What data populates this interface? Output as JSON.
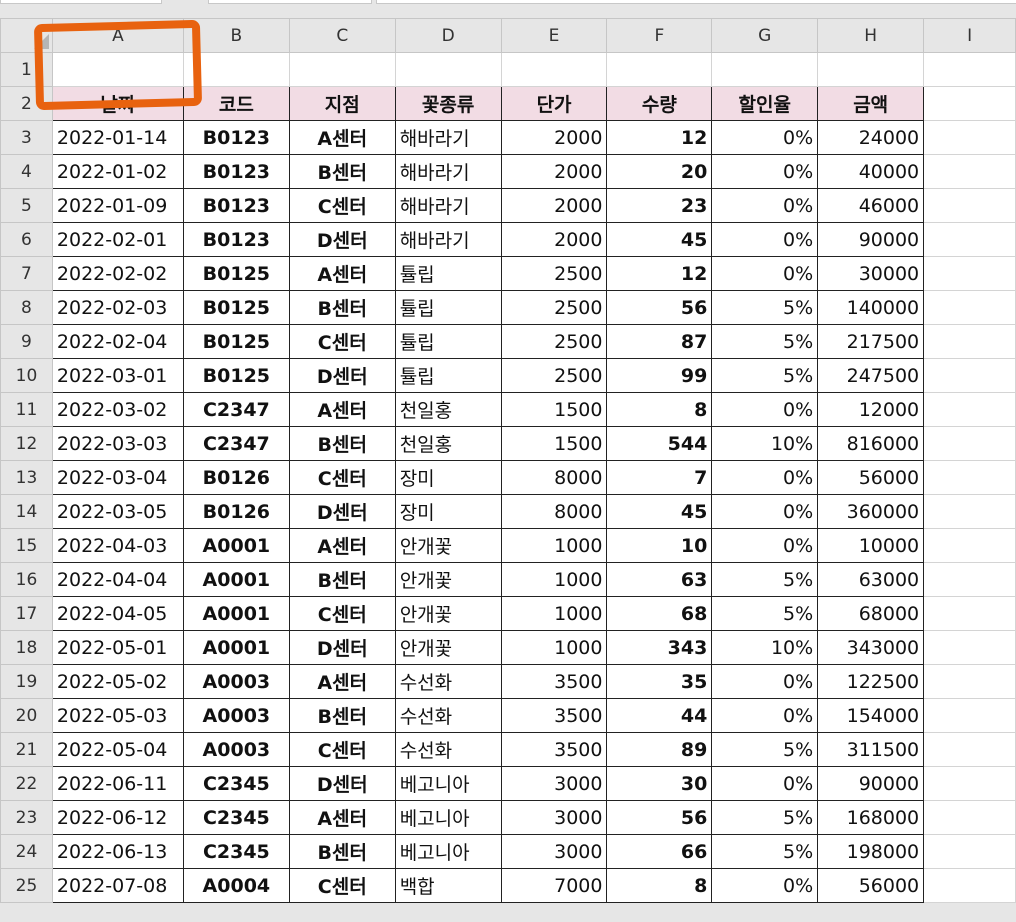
{
  "columns": [
    "A",
    "B",
    "C",
    "D",
    "E",
    "F",
    "G",
    "H",
    "I"
  ],
  "headers": [
    "날짜",
    "코드",
    "지점",
    "꽃종류",
    "단가",
    "수량",
    "할인율",
    "금액"
  ],
  "rows": [
    [
      "2022-01-14",
      "B0123",
      "A센터",
      "해바라기",
      "2000",
      "12",
      "0%",
      "24000"
    ],
    [
      "2022-01-02",
      "B0123",
      "B센터",
      "해바라기",
      "2000",
      "20",
      "0%",
      "40000"
    ],
    [
      "2022-01-09",
      "B0123",
      "C센터",
      "해바라기",
      "2000",
      "23",
      "0%",
      "46000"
    ],
    [
      "2022-02-01",
      "B0123",
      "D센터",
      "해바라기",
      "2000",
      "45",
      "0%",
      "90000"
    ],
    [
      "2022-02-02",
      "B0125",
      "A센터",
      "튤립",
      "2500",
      "12",
      "0%",
      "30000"
    ],
    [
      "2022-02-03",
      "B0125",
      "B센터",
      "튤립",
      "2500",
      "56",
      "5%",
      "140000"
    ],
    [
      "2022-02-04",
      "B0125",
      "C센터",
      "튤립",
      "2500",
      "87",
      "5%",
      "217500"
    ],
    [
      "2022-03-01",
      "B0125",
      "D센터",
      "튤립",
      "2500",
      "99",
      "5%",
      "247500"
    ],
    [
      "2022-03-02",
      "C2347",
      "A센터",
      "천일홍",
      "1500",
      "8",
      "0%",
      "12000"
    ],
    [
      "2022-03-03",
      "C2347",
      "B센터",
      "천일홍",
      "1500",
      "544",
      "10%",
      "816000"
    ],
    [
      "2022-03-04",
      "B0126",
      "C센터",
      "장미",
      "8000",
      "7",
      "0%",
      "56000"
    ],
    [
      "2022-03-05",
      "B0126",
      "D센터",
      "장미",
      "8000",
      "45",
      "0%",
      "360000"
    ],
    [
      "2022-04-03",
      "A0001",
      "A센터",
      "안개꽃",
      "1000",
      "10",
      "0%",
      "10000"
    ],
    [
      "2022-04-04",
      "A0001",
      "B센터",
      "안개꽃",
      "1000",
      "63",
      "5%",
      "63000"
    ],
    [
      "2022-04-05",
      "A0001",
      "C센터",
      "안개꽃",
      "1000",
      "68",
      "5%",
      "68000"
    ],
    [
      "2022-05-01",
      "A0001",
      "D센터",
      "안개꽃",
      "1000",
      "343",
      "10%",
      "343000"
    ],
    [
      "2022-05-02",
      "A0003",
      "A센터",
      "수선화",
      "3500",
      "35",
      "0%",
      "122500"
    ],
    [
      "2022-05-03",
      "A0003",
      "B센터",
      "수선화",
      "3500",
      "44",
      "0%",
      "154000"
    ],
    [
      "2022-05-04",
      "A0003",
      "C센터",
      "수선화",
      "3500",
      "89",
      "5%",
      "311500"
    ],
    [
      "2022-06-11",
      "C2345",
      "D센터",
      "베고니아",
      "3000",
      "30",
      "0%",
      "90000"
    ],
    [
      "2022-06-12",
      "C2345",
      "A센터",
      "베고니아",
      "3000",
      "56",
      "5%",
      "168000"
    ],
    [
      "2022-06-13",
      "C2345",
      "B센터",
      "베고니아",
      "3000",
      "66",
      "5%",
      "198000"
    ],
    [
      "2022-07-08",
      "A0004",
      "C센터",
      "백합",
      "7000",
      "8",
      "0%",
      "56000"
    ]
  ],
  "annotation_color": "#e8620f",
  "header_fill": "#f2dce4"
}
